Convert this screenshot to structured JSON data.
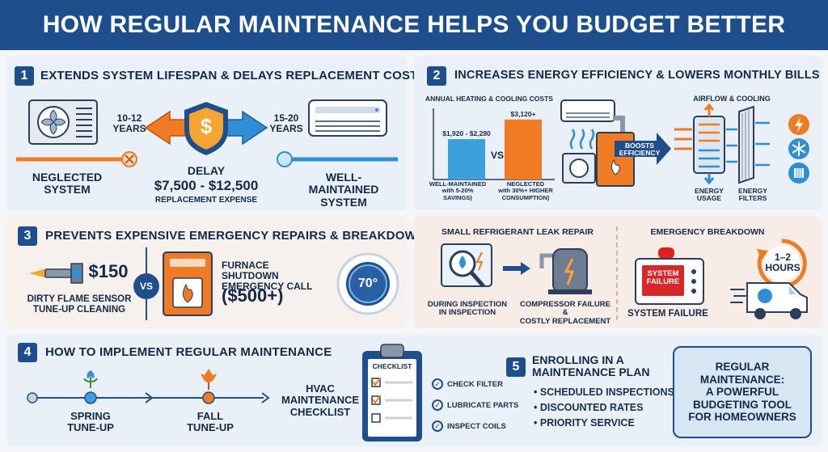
{
  "header": {
    "title": "HOW REGULAR MAINTENANCE HELPS YOU BUDGET BETTER"
  },
  "colors": {
    "navy": "#1f4e8c",
    "orange": "#f07b22",
    "blue": "#2f8fd6",
    "panel": "#e9f0f7",
    "panel_warm": "#f8ede6"
  },
  "section1": {
    "num": "1",
    "title": "EXTENDS SYSTEM LIFESPAN & DELAYS REPLACEMENT COSTS",
    "neglected_years": "10-12\nYEARS",
    "maintained_years": "15-20\nYEARS",
    "neglected_label": "NEGLECTED\nSYSTEM",
    "maintained_label": "WELL-MAINTAINED\nSYSTEM",
    "delay_label": "DELAY",
    "delay_amount": "$7,500 - $12,500",
    "delay_sub": "REPLACEMENT EXPENSE",
    "shield_symbol": "$",
    "icons": [
      "ac-unit-icon",
      "shield-dollar-icon",
      "wall-ac-icon"
    ]
  },
  "section2": {
    "num": "2",
    "title": "INCREASES ENERGY EFFICIENCY & LOWERS MONTHLY BILLS",
    "chart_title": "ANNUAL HEATING & COOLING COSTS",
    "vs": "VS",
    "boost_label": "BOOSTS\nEFFICIENCY",
    "airflow_title": "AIRFLOW & COOLING",
    "energy_usage": "ENERGY\nUSAGE",
    "energy_filters": "ENERGY\nFILTERS",
    "icons": [
      "lightning-icon",
      "snowflake-icon",
      "filter-icon"
    ]
  },
  "chart_data": {
    "type": "bar",
    "title": "ANNUAL HEATING & COOLING COSTS",
    "categories": [
      "WELL-MAINTAINED\nwith 5-20%\nSAVINGS)",
      "NEGLECTED\nwith 30%+ HIGHER\nCONSUMPTION)"
    ],
    "value_labels": [
      "$1,920 - $2,280",
      "$3,120+"
    ],
    "values": [
      2100,
      3120
    ],
    "colors": [
      "#3aa0dd",
      "#f07b22"
    ],
    "ylim": [
      0,
      3700
    ]
  },
  "section3": {
    "num": "3",
    "title": "PREVENTS EXPENSIVE EMERGENCY REPAIRS & BREAKDOWNS",
    "cheap_price": "$150",
    "cheap_label": "DIRTY FLAME SENSOR\nTUNE-UP CLEANING",
    "vs": "VS",
    "expensive_label": "FURNACE SHUTDOWN\nEMERGENCY CALL",
    "expensive_price": "($500+)",
    "thermostat": "70°",
    "leak_title": "SMALL REFRIGERANT LEAK REPAIR",
    "inspection_label": "DURING INSPECTION\nIN INSPECTION",
    "compressor_label": "COMPRESSOR FAILURE &\nCOSTLY REPLACEMENT",
    "breakdown_title": "EMERGENCY BREAKDOWN",
    "failure_screen": "SYSTEM\nFAILURE",
    "failure_label": "SYSTEM FAILURE",
    "hours": "1–2\nHOURS"
  },
  "section4": {
    "num": "4",
    "title": "HOW TO IMPLEMENT REGULAR MAINTENANCE",
    "spring": "SPRING\nTUNE-UP",
    "fall": "FALL\nTUNE-UP",
    "checklist_label": "HVAC\nMAINTENANCE\nCHECKLIST",
    "checklist_head": "CHECKLIST",
    "checks": [
      "CHECK FILTER",
      "LUBRICATE PARTS",
      "INSPECT COILS"
    ]
  },
  "section5": {
    "num": "5",
    "title": "ENROLLING IN A\nMAINTENANCE PLAN",
    "items": [
      "SCHEDULED INSPECTIONS",
      "DISCOUNTED RATES",
      "PRIORITY SERVICE"
    ]
  },
  "callout": {
    "text": "REGULAR\nMAINTENANCE:\nA POWERFUL\nBUDGETING TOOL\nFOR HOMEOWNERS"
  }
}
